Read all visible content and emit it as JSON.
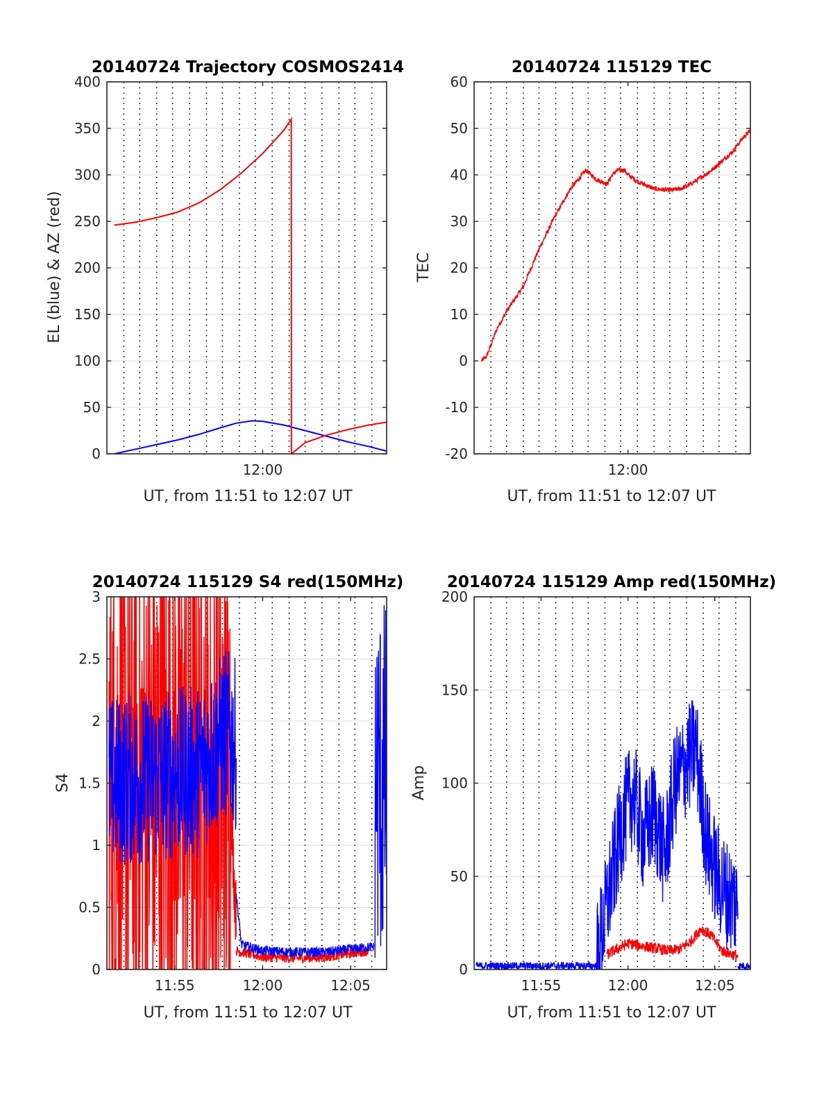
{
  "chart_data": [
    {
      "id": "trajectory",
      "type": "line",
      "title": "20140724 Trajectory COSMOS2414",
      "xlabel": "UT, from 11:51 to 12:07 UT",
      "ylabel": "EL (blue) & AZ (red)",
      "xlim": [
        11.853,
        12.117
      ],
      "ylim": [
        0,
        400
      ],
      "yticks": [
        0,
        50,
        100,
        150,
        200,
        250,
        300,
        350,
        400
      ],
      "xticks": [
        {
          "x": 12.0,
          "label": "12:00"
        }
      ],
      "vgrid": [
        11.869,
        11.884,
        11.9,
        11.915,
        11.931,
        11.947,
        11.962,
        11.978,
        11.993,
        12.009,
        12.025,
        12.04,
        12.056,
        12.072,
        12.087,
        12.103
      ],
      "grid": true,
      "series": [
        {
          "color": "#0000ff",
          "noise": 0,
          "x": [
            11.86,
            11.88,
            11.9,
            11.92,
            11.94,
            11.96,
            11.975,
            11.99,
            12.0,
            12.02,
            12.04,
            12.06,
            12.08,
            12.1,
            12.117
          ],
          "y": [
            0,
            5,
            10,
            15,
            21,
            28,
            33,
            35.5,
            35,
            31,
            25,
            19,
            13,
            8,
            3
          ]
        },
        {
          "color": "#ff0000",
          "noise": 0,
          "x": [
            11.86,
            11.88,
            11.9,
            11.92,
            11.94,
            11.96,
            11.98,
            12.0,
            12.02,
            12.027,
            12.0271,
            12.04,
            12.06,
            12.08,
            12.1,
            12.117
          ],
          "y": [
            246,
            249,
            254,
            260,
            270,
            284,
            302,
            323,
            348,
            360,
            0,
            12,
            20,
            26,
            31,
            34
          ]
        }
      ]
    },
    {
      "id": "tec",
      "type": "line",
      "title": "20140724 115129 TEC",
      "xlabel": "UT, from 11:51 to 12:07 UT",
      "ylabel": "TEC",
      "xlim": [
        11.853,
        12.117
      ],
      "ylim": [
        -20,
        60
      ],
      "yticks": [
        -20,
        -10,
        0,
        10,
        20,
        30,
        40,
        50,
        60
      ],
      "xticks": [
        {
          "x": 12.0,
          "label": "12:00"
        }
      ],
      "vgrid": [
        11.869,
        11.884,
        11.9,
        11.915,
        11.931,
        11.947,
        11.962,
        11.978,
        11.993,
        12.009,
        12.025,
        12.04,
        12.056,
        12.072,
        12.087,
        12.103
      ],
      "grid": true,
      "series": [
        {
          "color": "#ff0000",
          "noise": 0.5,
          "x": [
            11.86,
            11.865,
            11.875,
            11.885,
            11.9,
            11.915,
            11.93,
            11.945,
            11.96,
            11.97,
            11.98,
            11.985,
            11.99,
            11.997,
            12.0,
            12.01,
            12.025,
            12.04,
            12.05,
            12.06,
            12.07,
            12.08,
            12.09,
            12.1,
            12.11,
            12.117
          ],
          "y": [
            0,
            1,
            7,
            11,
            16,
            24,
            31,
            37,
            41,
            39,
            38,
            40,
            41,
            41,
            40,
            38.5,
            37,
            36.7,
            37,
            38,
            39.5,
            41,
            43,
            45,
            48,
            49.5
          ]
        }
      ]
    },
    {
      "id": "s4",
      "type": "line",
      "title": "20140724 115129 S4 red(150MHz)",
      "xlabel": "UT, from 11:51 to 12:07 UT",
      "ylabel": "S4",
      "xlim": [
        11.853,
        12.117
      ],
      "ylim": [
        0,
        3
      ],
      "yticks": [
        0,
        0.5,
        1,
        1.5,
        2,
        2.5,
        3
      ],
      "xticks": [
        {
          "x": 11.917,
          "label": "11:55"
        },
        {
          "x": 12.0,
          "label": "12:00"
        },
        {
          "x": 12.083,
          "label": "12:05"
        }
      ],
      "vgrid": [
        11.869,
        11.884,
        11.9,
        11.915,
        11.931,
        11.947,
        11.962,
        11.978,
        11.993,
        12.009,
        12.025,
        12.04,
        12.056,
        12.072,
        12.087,
        12.103
      ],
      "grid": true,
      "series": [
        {
          "color": "#ff0000",
          "noise": 2.2,
          "x": [
            11.855,
            11.97
          ],
          "y": [
            1.5,
            1.5
          ]
        },
        {
          "color": "#ff0000",
          "noise": 0.3,
          "x": [
            11.97,
            11.975
          ],
          "y": [
            1.3,
            0.4
          ]
        },
        {
          "color": "#ff0000",
          "noise": 0.04,
          "x": [
            11.975,
            12.0,
            12.03,
            12.06,
            12.1
          ],
          "y": [
            0.15,
            0.1,
            0.09,
            0.1,
            0.15
          ]
        },
        {
          "color": "#0000ff",
          "noise": 0.7,
          "x": [
            11.855,
            11.94,
            11.965,
            11.975
          ],
          "y": [
            1.5,
            1.6,
            1.9,
            1.8
          ]
        },
        {
          "color": "#0000ff",
          "noise": 0.04,
          "x": [
            11.975,
            11.98,
            12.0,
            12.03,
            12.06,
            12.1,
            12.105
          ],
          "y": [
            0.6,
            0.2,
            0.15,
            0.14,
            0.14,
            0.18,
            0.18
          ]
        },
        {
          "color": "#0000ff",
          "noise": 1.5,
          "x": [
            12.106,
            12.117
          ],
          "y": [
            1.5,
            1.5
          ]
        }
      ]
    },
    {
      "id": "amp",
      "type": "line",
      "title": "20140724 115129 Amp red(150MHz)",
      "xlabel": "UT, from 11:51 to 12:07 UT",
      "ylabel": "Amp",
      "xlim": [
        11.853,
        12.117
      ],
      "ylim": [
        0,
        200
      ],
      "yticks": [
        0,
        50,
        100,
        150,
        200
      ],
      "xticks": [
        {
          "x": 11.917,
          "label": "11:55"
        },
        {
          "x": 12.0,
          "label": "12:00"
        },
        {
          "x": 12.083,
          "label": "12:05"
        }
      ],
      "vgrid": [
        11.869,
        11.884,
        11.9,
        11.915,
        11.931,
        11.947,
        11.962,
        11.978,
        11.993,
        12.009,
        12.025,
        12.04,
        12.056,
        12.072,
        12.087,
        12.103
      ],
      "grid": true,
      "series": [
        {
          "color": "#ff0000",
          "noise": 3,
          "x": [
            11.98,
            12.0,
            12.02,
            12.04,
            12.05,
            12.06,
            12.07,
            12.08,
            12.09,
            12.1,
            12.105
          ],
          "y": [
            8,
            14,
            12,
            10,
            11,
            15,
            22,
            18,
            10,
            8,
            7
          ]
        },
        {
          "color": "#0000ff",
          "noise": 2,
          "x": [
            11.855,
            11.97
          ],
          "y": [
            2,
            2
          ]
        },
        {
          "color": "#0000ff",
          "noise": 30,
          "x": [
            11.97,
            11.985,
            11.995,
            12.005,
            12.015,
            12.025,
            12.035,
            12.045,
            12.055,
            12.065,
            12.075,
            12.085,
            12.095,
            12.105
          ],
          "y": [
            5,
            50,
            80,
            95,
            70,
            85,
            60,
            100,
            110,
            120,
            70,
            50,
            40,
            35
          ]
        },
        {
          "color": "#0000ff",
          "noise": 2,
          "x": [
            12.105,
            12.117
          ],
          "y": [
            2,
            2
          ]
        }
      ]
    }
  ]
}
